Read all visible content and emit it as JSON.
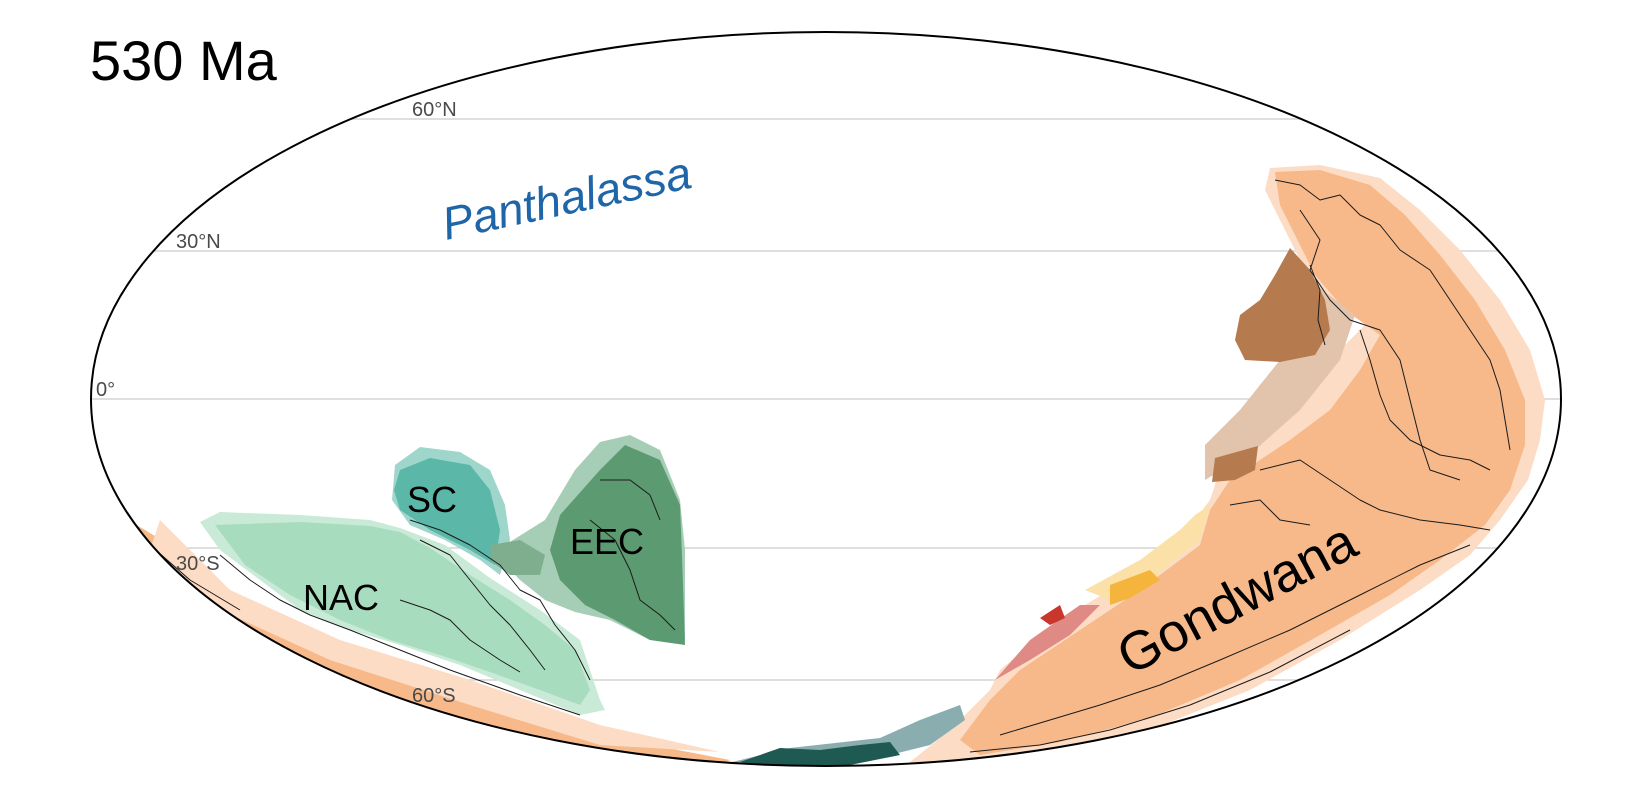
{
  "map": {
    "age_label": "530 Ma",
    "ocean": {
      "name": "Panthalassa",
      "color": "#1f66a8"
    },
    "latitude_labels": {
      "lat60n": "60°N",
      "lat30n": "30°N",
      "equator": "0°",
      "lat30s": "30°S",
      "lat60s": "60°S"
    },
    "blocks": {
      "sc": "SC",
      "eec": "EEC",
      "nac": "NAC",
      "gondwana": "Gondwana"
    },
    "colors": {
      "gondwana_core": "#f7b98a",
      "gondwana_margin": "#fcdcc4",
      "nac": "#a8dcbf",
      "sc": "#5bb7a8",
      "eec": "#5c9a72",
      "south_terranes": "#1f5a52",
      "brown_terrane": "#b57a4e",
      "red_terrane": "#df8a85",
      "orange_terrane": "#f5b43c"
    }
  }
}
